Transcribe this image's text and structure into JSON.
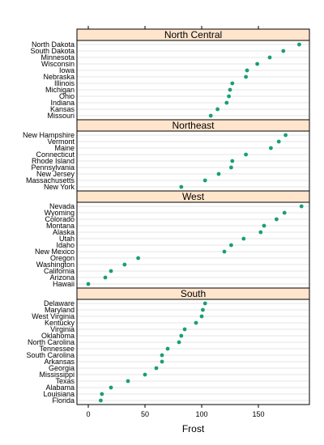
{
  "chart_data": {
    "type": "scatter",
    "title": "",
    "xlabel": "Frost",
    "ylabel": "",
    "xlim": [
      -10,
      195
    ],
    "xticks": [
      0,
      50,
      100,
      150
    ],
    "grid": true,
    "point_color": "#1a9e77",
    "strip_color": "#ffe5cc",
    "panels": [
      {
        "name": "North Central",
        "states": [
          "North Dakota",
          "South Dakota",
          "Minnesota",
          "Wisconsin",
          "Iowa",
          "Nebraska",
          "Illinois",
          "Michigan",
          "Ohio",
          "Indiana",
          "Kansas",
          "Missouri"
        ],
        "values": [
          186,
          172,
          160,
          149,
          140,
          139,
          127,
          125,
          124,
          122,
          114,
          108
        ]
      },
      {
        "name": "Northeast",
        "states": [
          "New Hampshire",
          "Vermont",
          "Maine",
          "Connecticut",
          "Rhode Island",
          "Pennsylvania",
          "New Jersey",
          "Massachusetts",
          "New York"
        ],
        "values": [
          174,
          168,
          161,
          139,
          127,
          126,
          115,
          103,
          82
        ]
      },
      {
        "name": "West",
        "states": [
          "Nevada",
          "Wyoming",
          "Colorado",
          "Montana",
          "Alaska",
          "Utah",
          "Idaho",
          "New Mexico",
          "Oregon",
          "Washington",
          "California",
          "Arizona",
          "Hawaii"
        ],
        "values": [
          188,
          173,
          166,
          155,
          152,
          137,
          126,
          120,
          44,
          32,
          20,
          15,
          0
        ]
      },
      {
        "name": "South",
        "states": [
          "Delaware",
          "Maryland",
          "West Virginia",
          "Kentucky",
          "Virginia",
          "Oklahoma",
          "North Carolina",
          "Tennessee",
          "South Carolina",
          "Arkansas",
          "Georgia",
          "Mississippi",
          "Texas",
          "Alabama",
          "Louisiana",
          "Florida"
        ],
        "values": [
          103,
          101,
          100,
          95,
          85,
          82,
          80,
          70,
          65,
          65,
          60,
          50,
          35,
          20,
          12,
          11
        ]
      }
    ]
  }
}
